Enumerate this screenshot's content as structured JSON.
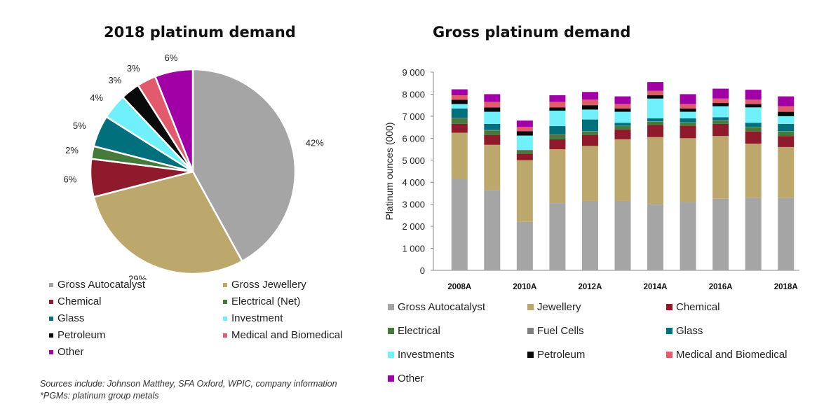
{
  "chart_data": [
    {
      "type": "pie",
      "title": "2018 platinum demand",
      "slices": [
        {
          "name": "Gross Autocatalyst",
          "value": 42,
          "label": "42%",
          "color": "#a5a5a5"
        },
        {
          "name": "Gross Jewellery",
          "value": 29,
          "label": "29%",
          "color": "#bca76c"
        },
        {
          "name": "Chemical",
          "value": 6,
          "label": "6%",
          "color": "#8e1a2b"
        },
        {
          "name": "Electrical (Net)",
          "value": 2,
          "label": "2%",
          "color": "#467a3a"
        },
        {
          "name": "Glass",
          "value": 5,
          "label": "5%",
          "color": "#00707c"
        },
        {
          "name": "Investment",
          "value": 4,
          "label": "4%",
          "color": "#6ff0fa"
        },
        {
          "name": "Petroleum",
          "value": 3,
          "label": "3%",
          "color": "#0a0a0a"
        },
        {
          "name": "Medical and Biomedical",
          "value": 3,
          "label": "3%",
          "color": "#e15b6d"
        },
        {
          "name": "Other",
          "value": 6,
          "label": "6%",
          "color": "#a100a7"
        }
      ],
      "legend": [
        "Gross Autocatalyst",
        "Gross Jewellery",
        "Chemical",
        "Electrical (Net)",
        "Glass",
        "Investment",
        "Petroleum",
        "Medical and Biomedical",
        "Other"
      ]
    },
    {
      "type": "bar",
      "stacked": true,
      "title": "Gross platinum demand",
      "ylabel": "Platinum ounces (000)",
      "ylim": [
        0,
        9000
      ],
      "yticks": [
        0,
        1000,
        2000,
        3000,
        4000,
        5000,
        6000,
        7000,
        8000,
        9000
      ],
      "ytick_labels": [
        "0",
        "1 000",
        "2 000",
        "3 000",
        "4 000",
        "5 000",
        "6 000",
        "7 000",
        "8 000",
        "9 000"
      ],
      "categories": [
        "2008A",
        "2009A",
        "2010A",
        "2011A",
        "2012A",
        "2013A",
        "2014A",
        "2015A",
        "2016A",
        "2017A",
        "2018A"
      ],
      "category_labels": [
        "2008A",
        "",
        "2010A",
        "",
        "2012A",
        "",
        "2014A",
        "",
        "2016A",
        "",
        "2018A"
      ],
      "series": [
        {
          "name": "Gross Autocatalyst",
          "color": "#a5a5a5",
          "values": [
            4150,
            3650,
            2200,
            3050,
            3150,
            3150,
            3000,
            3100,
            3250,
            3300,
            3300
          ]
        },
        {
          "name": "Jewellery",
          "color": "#bca76c",
          "values": [
            2100,
            2050,
            2800,
            2450,
            2500,
            2800,
            3050,
            2900,
            2850,
            2450,
            2300
          ]
        },
        {
          "name": "Chemical",
          "color": "#8e1a2b",
          "values": [
            400,
            450,
            300,
            450,
            500,
            450,
            550,
            550,
            550,
            550,
            500
          ]
        },
        {
          "name": "Electrical",
          "color": "#467a3a",
          "values": [
            250,
            200,
            150,
            200,
            150,
            150,
            150,
            150,
            150,
            200,
            200
          ]
        },
        {
          "name": "Fuel Cells",
          "color": "#808080",
          "values": [
            20,
            20,
            20,
            20,
            20,
            20,
            20,
            20,
            20,
            20,
            20
          ]
        },
        {
          "name": "Glass",
          "color": "#00707c",
          "values": [
            430,
            280,
            0,
            380,
            530,
            130,
            130,
            180,
            130,
            180,
            330
          ]
        },
        {
          "name": "Investments",
          "color": "#6ff0fa",
          "values": [
            200,
            550,
            650,
            700,
            450,
            500,
            900,
            300,
            500,
            700,
            350
          ]
        },
        {
          "name": "Petroleum",
          "color": "#0a0a0a",
          "values": [
            200,
            200,
            200,
            150,
            200,
            150,
            150,
            150,
            150,
            150,
            200
          ]
        },
        {
          "name": "Medical and Biomedical",
          "color": "#e15b6d",
          "values": [
            200,
            250,
            200,
            250,
            250,
            200,
            200,
            200,
            200,
            200,
            250
          ]
        },
        {
          "name": "Other",
          "color": "#a100a7",
          "values": [
            270,
            350,
            280,
            300,
            350,
            350,
            400,
            450,
            450,
            450,
            450
          ]
        }
      ],
      "legend": [
        "Gross Autocatalyst",
        "Jewellery",
        "Chemical",
        "Electrical",
        "Fuel Cells",
        "Glass",
        "Investments",
        "Petroleum",
        "Medical and Biomedical",
        "Other"
      ]
    }
  ],
  "footer": {
    "sources": "Sources include:  Johnson Matthey, SFA Oxford, WPIC, company information",
    "note": "*PGMs: platinum group metals"
  }
}
